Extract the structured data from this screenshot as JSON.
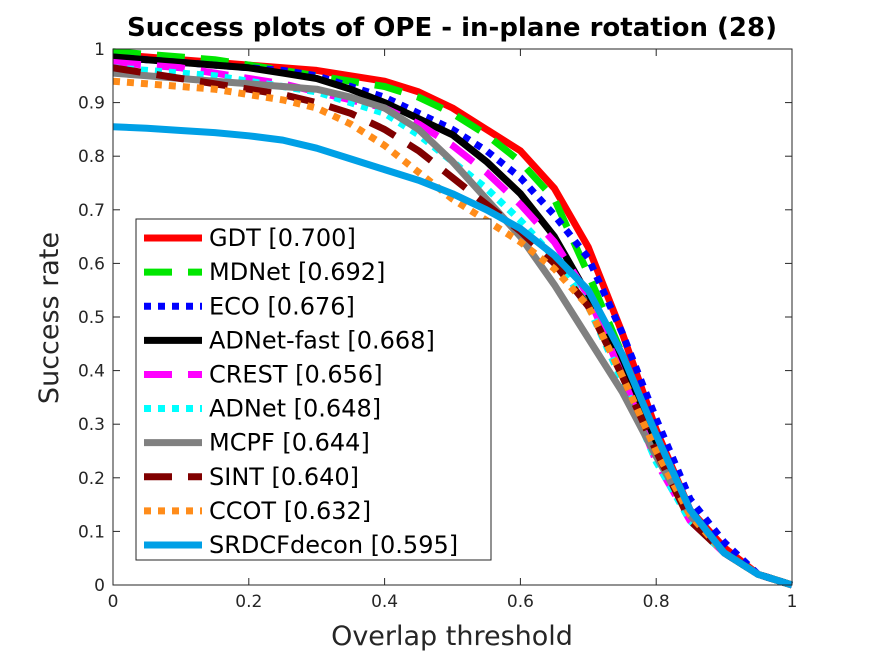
{
  "chart_data": {
    "type": "line",
    "title": "Success plots of OPE - in-plane rotation (28)",
    "xlabel": "Overlap threshold",
    "ylabel": "Success rate",
    "xlim": [
      0,
      1
    ],
    "ylim": [
      0,
      1
    ],
    "xticks": [
      "0",
      "0.2",
      "0.4",
      "0.6",
      "0.8",
      "1"
    ],
    "yticks": [
      "0",
      "0.1",
      "0.2",
      "0.3",
      "0.4",
      "0.5",
      "0.6",
      "0.7",
      "0.8",
      "0.9",
      "1"
    ],
    "legend_position": "inside lower-left",
    "x": [
      0,
      0.05,
      0.1,
      0.15,
      0.2,
      0.25,
      0.3,
      0.35,
      0.4,
      0.45,
      0.5,
      0.55,
      0.6,
      0.65,
      0.7,
      0.75,
      0.8,
      0.85,
      0.9,
      0.95,
      1.0
    ],
    "series": [
      {
        "name": "GDT [0.700]",
        "color": "#ff0000",
        "dash": "solid",
        "values": [
          0.99,
          0.985,
          0.98,
          0.975,
          0.97,
          0.965,
          0.96,
          0.95,
          0.94,
          0.92,
          0.89,
          0.85,
          0.81,
          0.74,
          0.63,
          0.47,
          0.29,
          0.14,
          0.07,
          0.02,
          0.0
        ]
      },
      {
        "name": "MDNet [0.692]",
        "color": "#00e600",
        "dash": "long",
        "values": [
          0.995,
          0.99,
          0.985,
          0.98,
          0.97,
          0.96,
          0.95,
          0.94,
          0.93,
          0.91,
          0.88,
          0.84,
          0.79,
          0.72,
          0.58,
          0.43,
          0.27,
          0.13,
          0.06,
          0.02,
          0.0
        ]
      },
      {
        "name": "ECO [0.676]",
        "color": "#0000ff",
        "dash": "dot",
        "values": [
          0.985,
          0.98,
          0.975,
          0.97,
          0.965,
          0.96,
          0.95,
          0.93,
          0.91,
          0.88,
          0.85,
          0.81,
          0.76,
          0.69,
          0.61,
          0.47,
          0.31,
          0.16,
          0.08,
          0.02,
          0.0
        ]
      },
      {
        "name": "ADNet-fast [0.668]",
        "color": "#000000",
        "dash": "solid",
        "values": [
          0.985,
          0.98,
          0.975,
          0.97,
          0.965,
          0.955,
          0.945,
          0.925,
          0.9,
          0.87,
          0.84,
          0.79,
          0.73,
          0.65,
          0.54,
          0.41,
          0.26,
          0.13,
          0.06,
          0.02,
          0.0
        ]
      },
      {
        "name": "CREST [0.656]",
        "color": "#ff00ff",
        "dash": "long",
        "values": [
          0.975,
          0.97,
          0.965,
          0.955,
          0.945,
          0.935,
          0.92,
          0.905,
          0.89,
          0.86,
          0.82,
          0.77,
          0.71,
          0.64,
          0.54,
          0.39,
          0.23,
          0.12,
          0.06,
          0.02,
          0.0
        ]
      },
      {
        "name": "ADNet [0.648]",
        "color": "#00ffff",
        "dash": "dot",
        "values": [
          0.965,
          0.96,
          0.955,
          0.95,
          0.94,
          0.93,
          0.92,
          0.9,
          0.88,
          0.84,
          0.79,
          0.74,
          0.68,
          0.61,
          0.52,
          0.38,
          0.23,
          0.12,
          0.06,
          0.02,
          0.0
        ]
      },
      {
        "name": "MCPF [0.644]",
        "color": "#808080",
        "dash": "solid",
        "values": [
          0.955,
          0.95,
          0.945,
          0.94,
          0.935,
          0.93,
          0.925,
          0.91,
          0.89,
          0.85,
          0.79,
          0.72,
          0.65,
          0.56,
          0.46,
          0.36,
          0.24,
          0.13,
          0.06,
          0.02,
          0.0
        ]
      },
      {
        "name": "SINT [0.640]",
        "color": "#800000",
        "dash": "long",
        "values": [
          0.965,
          0.955,
          0.945,
          0.935,
          0.925,
          0.915,
          0.9,
          0.88,
          0.85,
          0.81,
          0.76,
          0.71,
          0.66,
          0.6,
          0.52,
          0.39,
          0.25,
          0.12,
          0.06,
          0.02,
          0.0
        ]
      },
      {
        "name": "CCOT [0.632]",
        "color": "#ff8c1a",
        "dash": "dot",
        "values": [
          0.94,
          0.935,
          0.93,
          0.925,
          0.915,
          0.905,
          0.89,
          0.86,
          0.82,
          0.77,
          0.72,
          0.68,
          0.64,
          0.59,
          0.52,
          0.39,
          0.25,
          0.13,
          0.06,
          0.02,
          0.0
        ]
      },
      {
        "name": "SRDCFdecon [0.595]",
        "color": "#00a0e6",
        "dash": "solid",
        "values": [
          0.855,
          0.852,
          0.848,
          0.844,
          0.838,
          0.83,
          0.815,
          0.795,
          0.775,
          0.755,
          0.73,
          0.7,
          0.665,
          0.615,
          0.55,
          0.43,
          0.28,
          0.14,
          0.06,
          0.02,
          0.0
        ]
      }
    ]
  }
}
